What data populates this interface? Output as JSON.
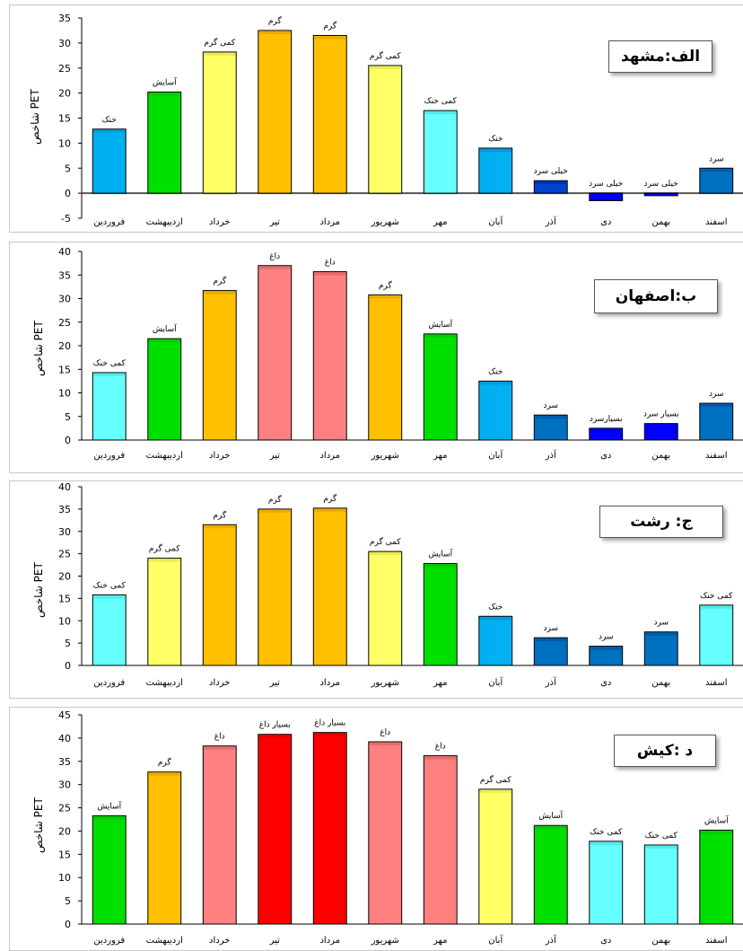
{
  "chart_data": [
    {
      "type": "bar",
      "title": "الف:مشهد",
      "ylabel": "شاخص PET",
      "ylim": [
        -5,
        35
      ],
      "yticks": [
        -5,
        0,
        5,
        10,
        15,
        20,
        25,
        30,
        35
      ],
      "categories": [
        "فروردین",
        "اردیبهشت",
        "خرداد",
        "تیر",
        "مرداد",
        "شهریور",
        "مهر",
        "آبان",
        "آذر",
        "دی",
        "بهمن",
        "اسفند"
      ],
      "values": [
        12.8,
        20.2,
        28.2,
        32.5,
        31.5,
        25.5,
        16.5,
        9.0,
        2.5,
        -1.5,
        -0.5,
        5.0
      ],
      "labels": [
        "خنک",
        "آسایش",
        "کمی گرم",
        "گرم",
        "گرم",
        "کمی گرم",
        "کمی خنک",
        "خنک",
        "خیلی سرد",
        "خیلی سرد",
        "خیلی سرد",
        "سرد"
      ],
      "colors": [
        "#00b0f0",
        "#00e000",
        "#ffff66",
        "#ffc000",
        "#ffc000",
        "#ffff66",
        "#66ffff",
        "#00b0f0",
        "#0044cc",
        "#0000ff",
        "#0000ff",
        "#0070c0"
      ]
    },
    {
      "type": "bar",
      "title": "ب:اصفهان",
      "ylabel": "شاخص PET",
      "ylim": [
        0,
        40
      ],
      "yticks": [
        0,
        5,
        10,
        15,
        20,
        25,
        30,
        35,
        40
      ],
      "categories": [
        "فروردین",
        "اردیبهشت",
        "خرداد",
        "تیر",
        "مرداد",
        "شهریور",
        "مهر",
        "آبان",
        "آذر",
        "دی",
        "بهمن",
        "اسفند"
      ],
      "values": [
        14.3,
        21.5,
        31.7,
        37.0,
        35.7,
        30.8,
        22.5,
        12.5,
        5.3,
        2.5,
        3.5,
        7.8
      ],
      "labels": [
        "کمی خنک",
        "آسایش",
        "گرم",
        "داغ",
        "داغ",
        "گرم",
        "آسایش",
        "خنک",
        "سرد",
        "بسیارسرد",
        "بسیار سرد",
        "سرد"
      ],
      "colors": [
        "#66ffff",
        "#00e000",
        "#ffc000",
        "#ff8080",
        "#ff8080",
        "#ffc000",
        "#00e000",
        "#00b0f0",
        "#0070c0",
        "#0000ff",
        "#0000ff",
        "#0070c0"
      ]
    },
    {
      "type": "bar",
      "title": "ج: رشت",
      "ylabel": "شاخص PET",
      "ylim": [
        0,
        40
      ],
      "yticks": [
        0,
        5,
        10,
        15,
        20,
        25,
        30,
        35,
        40
      ],
      "categories": [
        "فروردین",
        "اردیبهشت",
        "خرداد",
        "تیر",
        "مرداد",
        "شهریور",
        "مهر",
        "آبان",
        "آذر",
        "دی",
        "بهمن",
        "اسفند"
      ],
      "values": [
        15.8,
        24.0,
        31.5,
        35.0,
        35.2,
        25.5,
        22.8,
        11.0,
        6.2,
        4.3,
        7.5,
        13.5
      ],
      "labels": [
        "کمی خنک",
        "کمی گرم",
        "گرم",
        "گرم",
        "گرم",
        "کمی گرم",
        "آسایش",
        "خنک",
        "سرد",
        "سرد",
        "سرد",
        "کمی خنک"
      ],
      "colors": [
        "#66ffff",
        "#ffff66",
        "#ffc000",
        "#ffc000",
        "#ffc000",
        "#ffff66",
        "#00e000",
        "#00b0f0",
        "#0070c0",
        "#0070c0",
        "#0070c0",
        "#66ffff"
      ]
    },
    {
      "type": "bar",
      "title": "د :کیش",
      "ylabel": "شاخص PET",
      "ylim": [
        0,
        45
      ],
      "yticks": [
        0,
        5,
        10,
        15,
        20,
        25,
        30,
        35,
        40,
        45
      ],
      "categories": [
        "فروردین",
        "اردیبهشت",
        "خرداد",
        "تیر",
        "مرداد",
        "شهریور",
        "مهر",
        "آبان",
        "آذر",
        "دی",
        "بهمن",
        "اسفند"
      ],
      "values": [
        23.3,
        32.7,
        38.3,
        40.8,
        41.2,
        39.2,
        36.2,
        29.0,
        21.2,
        17.8,
        17.0,
        20.2
      ],
      "labels": [
        "آسایش",
        "گرم",
        "داغ",
        "بسیار داغ",
        "بسیار داغ",
        "داغ",
        "داغ",
        "کمی گرم",
        "آسایش",
        "کمی خنک",
        "کمی خنک",
        "آسایش"
      ],
      "colors": [
        "#00e000",
        "#ffc000",
        "#ff8080",
        "#ff0000",
        "#ff0000",
        "#ff8080",
        "#ff8080",
        "#ffff66",
        "#00e000",
        "#66ffff",
        "#66ffff",
        "#00e000"
      ]
    }
  ]
}
